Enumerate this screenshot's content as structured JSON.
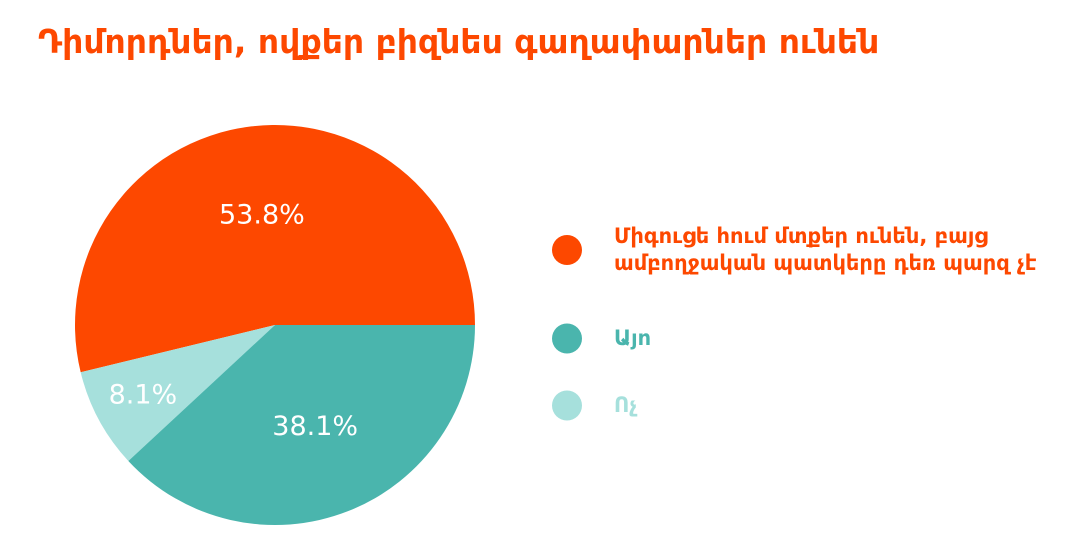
{
  "chart_data": {
    "type": "pie",
    "title": "Դիմորդներ, ովքեր բիզնես գաղափարներ ունեն",
    "series": [
      {
        "name": "Միգուցե հում մտքեր ունեն, բայց ամբողջական պատկերը դեռ պարզ չէ",
        "color": "#fd4800",
        "values": [
          53.8
        ],
        "value_labels": [
          "53.8%"
        ]
      },
      {
        "name": "Այո",
        "color": "#4ab5ad",
        "values": [
          38.1
        ],
        "value_labels": [
          "38.1%"
        ]
      },
      {
        "name": "Ոչ",
        "color": "#a6e0dc",
        "values": [
          8.1
        ],
        "value_labels": [
          "8.1%"
        ]
      }
    ]
  }
}
